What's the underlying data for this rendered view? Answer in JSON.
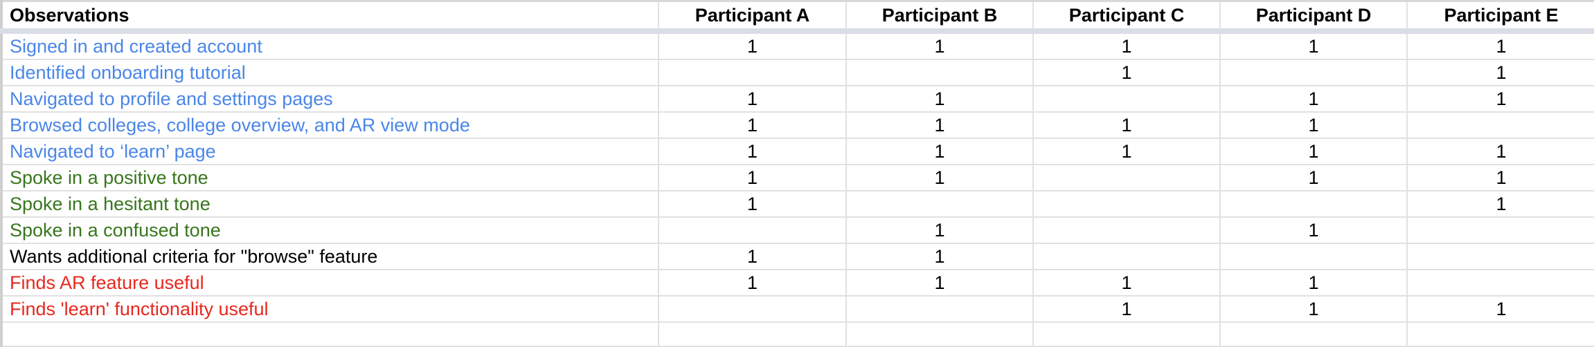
{
  "table": {
    "headers": [
      "Observations",
      "Participant A",
      "Participant B",
      "Participant C",
      "Participant D",
      "Participant E"
    ],
    "rows": [
      {
        "label": "Signed in and created account",
        "color": "#4a86e8",
        "values": [
          "1",
          "1",
          "1",
          "1",
          "1"
        ]
      },
      {
        "label": "Identified onboarding tutorial",
        "color": "#4a86e8",
        "values": [
          "",
          "",
          "1",
          "",
          "1"
        ]
      },
      {
        "label": "Navigated to profile and settings pages",
        "color": "#4a86e8",
        "values": [
          "1",
          "1",
          "",
          "1",
          "1"
        ]
      },
      {
        "label": "Browsed colleges, college overview, and AR view mode",
        "color": "#4a86e8",
        "values": [
          "1",
          "1",
          "1",
          "1",
          ""
        ]
      },
      {
        "label": "Navigated to ‘learn’ page",
        "color": "#4a86e8",
        "values": [
          "1",
          "1",
          "1",
          "1",
          "1"
        ]
      },
      {
        "label": "Spoke in a positive tone",
        "color": "#38761d",
        "values": [
          "1",
          "1",
          "",
          "1",
          "1"
        ]
      },
      {
        "label": "Spoke in a hesitant tone",
        "color": "#38761d",
        "values": [
          "1",
          "",
          "",
          "",
          "1"
        ]
      },
      {
        "label": "Spoke in a confused tone",
        "color": "#38761d",
        "values": [
          "",
          "1",
          "",
          "1",
          ""
        ]
      },
      {
        "label": "Wants additional criteria for \"browse\" feature",
        "color": "#000000",
        "values": [
          "1",
          "1",
          "",
          "",
          ""
        ]
      },
      {
        "label": "Finds AR feature useful",
        "color": "#e8281e",
        "values": [
          "1",
          "1",
          "1",
          "1",
          ""
        ]
      },
      {
        "label": "Finds 'learn' functionality useful",
        "color": "#e8281e",
        "values": [
          "",
          "",
          "1",
          "1",
          "1"
        ]
      }
    ]
  }
}
